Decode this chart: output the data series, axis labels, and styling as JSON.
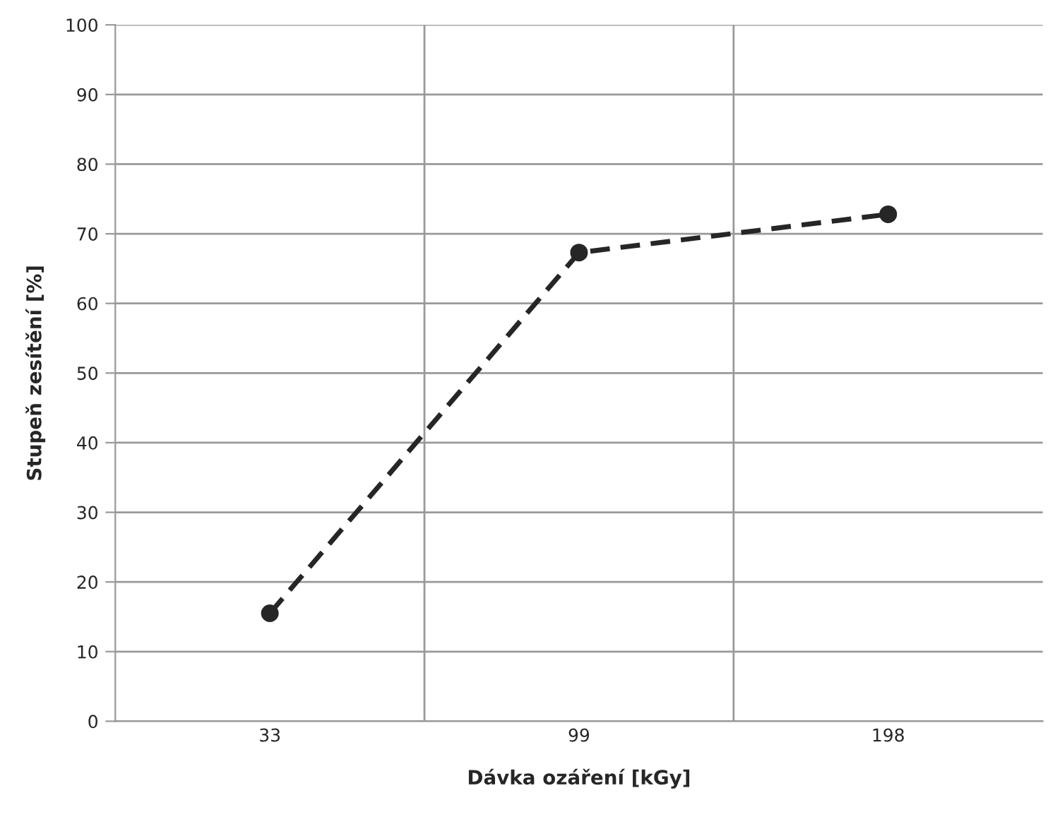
{
  "chart_data": {
    "type": "line",
    "xlabel": "Dávka ozáření [kGy]",
    "ylabel": "Stupeň zesítění [%]",
    "categories": [
      "33",
      "99",
      "198"
    ],
    "series": [
      {
        "color": "#262626",
        "values": [
          15.5,
          67.3,
          72.8
        ]
      }
    ],
    "ylim": [
      0,
      100
    ],
    "yticks": [
      0,
      10,
      20,
      30,
      40,
      50,
      60,
      70,
      80,
      90,
      100
    ],
    "grid": true,
    "marker": "circle",
    "line_style": "dashed"
  }
}
